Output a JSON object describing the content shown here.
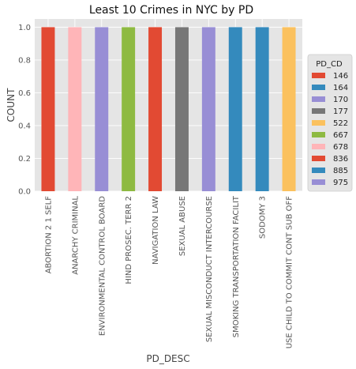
{
  "chart_data": {
    "type": "bar",
    "title": "Least 10 Crimes in NYC by PD",
    "xlabel": "PD_DESC",
    "ylabel": "COUNT",
    "ylim": [
      0,
      1.05
    ],
    "yticks": [
      "0.0",
      "0.2",
      "0.4",
      "0.6",
      "0.8",
      "1.0"
    ],
    "grid": true,
    "stacked": true,
    "categories": [
      "ABORTION 2  1  SELF",
      "ANARCHY CRIMINAL",
      "ENVIRONMENTAL CONTROL BOARD",
      "HIND PROSEC. TERR 2",
      "NAVIGATION LAW",
      "SEXUAL ABUSE",
      "SEXUAL MISCONDUCT INTERCOURSE",
      "SMOKING TRANSPORTATION FACILIT",
      "SODOMY 3",
      "USE CHILD TO COMMIT CONT SUB OFF"
    ],
    "legend": {
      "title": "PD_CD",
      "placement": "right"
    },
    "series": [
      {
        "name": "146",
        "color": "#E24A33",
        "values": [
          1,
          0,
          0,
          0,
          0,
          0,
          0,
          0,
          0,
          0
        ]
      },
      {
        "name": "164",
        "color": "#348ABD",
        "values": [
          0,
          0,
          0,
          0,
          0,
          0,
          0,
          0,
          1,
          0
        ]
      },
      {
        "name": "170",
        "color": "#988ED5",
        "values": [
          0,
          0,
          1,
          0,
          0,
          0,
          0,
          0,
          0,
          0
        ]
      },
      {
        "name": "177",
        "color": "#777777",
        "values": [
          0,
          0,
          0,
          0,
          0,
          1,
          0,
          0,
          0,
          0
        ]
      },
      {
        "name": "522",
        "color": "#FBC15E",
        "values": [
          0,
          0,
          0,
          0,
          0,
          0,
          0,
          0,
          0,
          1
        ]
      },
      {
        "name": "667",
        "color": "#8EBA42",
        "values": [
          0,
          0,
          0,
          1,
          0,
          0,
          0,
          0,
          0,
          0
        ]
      },
      {
        "name": "678",
        "color": "#FFB5B8",
        "values": [
          0,
          1,
          0,
          0,
          0,
          0,
          0,
          0,
          0,
          0
        ]
      },
      {
        "name": "836",
        "color": "#E24A33",
        "values": [
          0,
          0,
          0,
          0,
          1,
          0,
          0,
          0,
          0,
          0
        ]
      },
      {
        "name": "885",
        "color": "#348ABD",
        "values": [
          0,
          0,
          0,
          0,
          0,
          0,
          0,
          1,
          0,
          0
        ]
      },
      {
        "name": "975",
        "color": "#988ED5",
        "values": [
          0,
          0,
          0,
          0,
          0,
          0,
          1,
          0,
          0,
          0
        ]
      }
    ]
  },
  "colors": {
    "plot_background": "#E5E5E5",
    "grid": "#FFFFFF",
    "legend_background": "#E5E5E5"
  }
}
